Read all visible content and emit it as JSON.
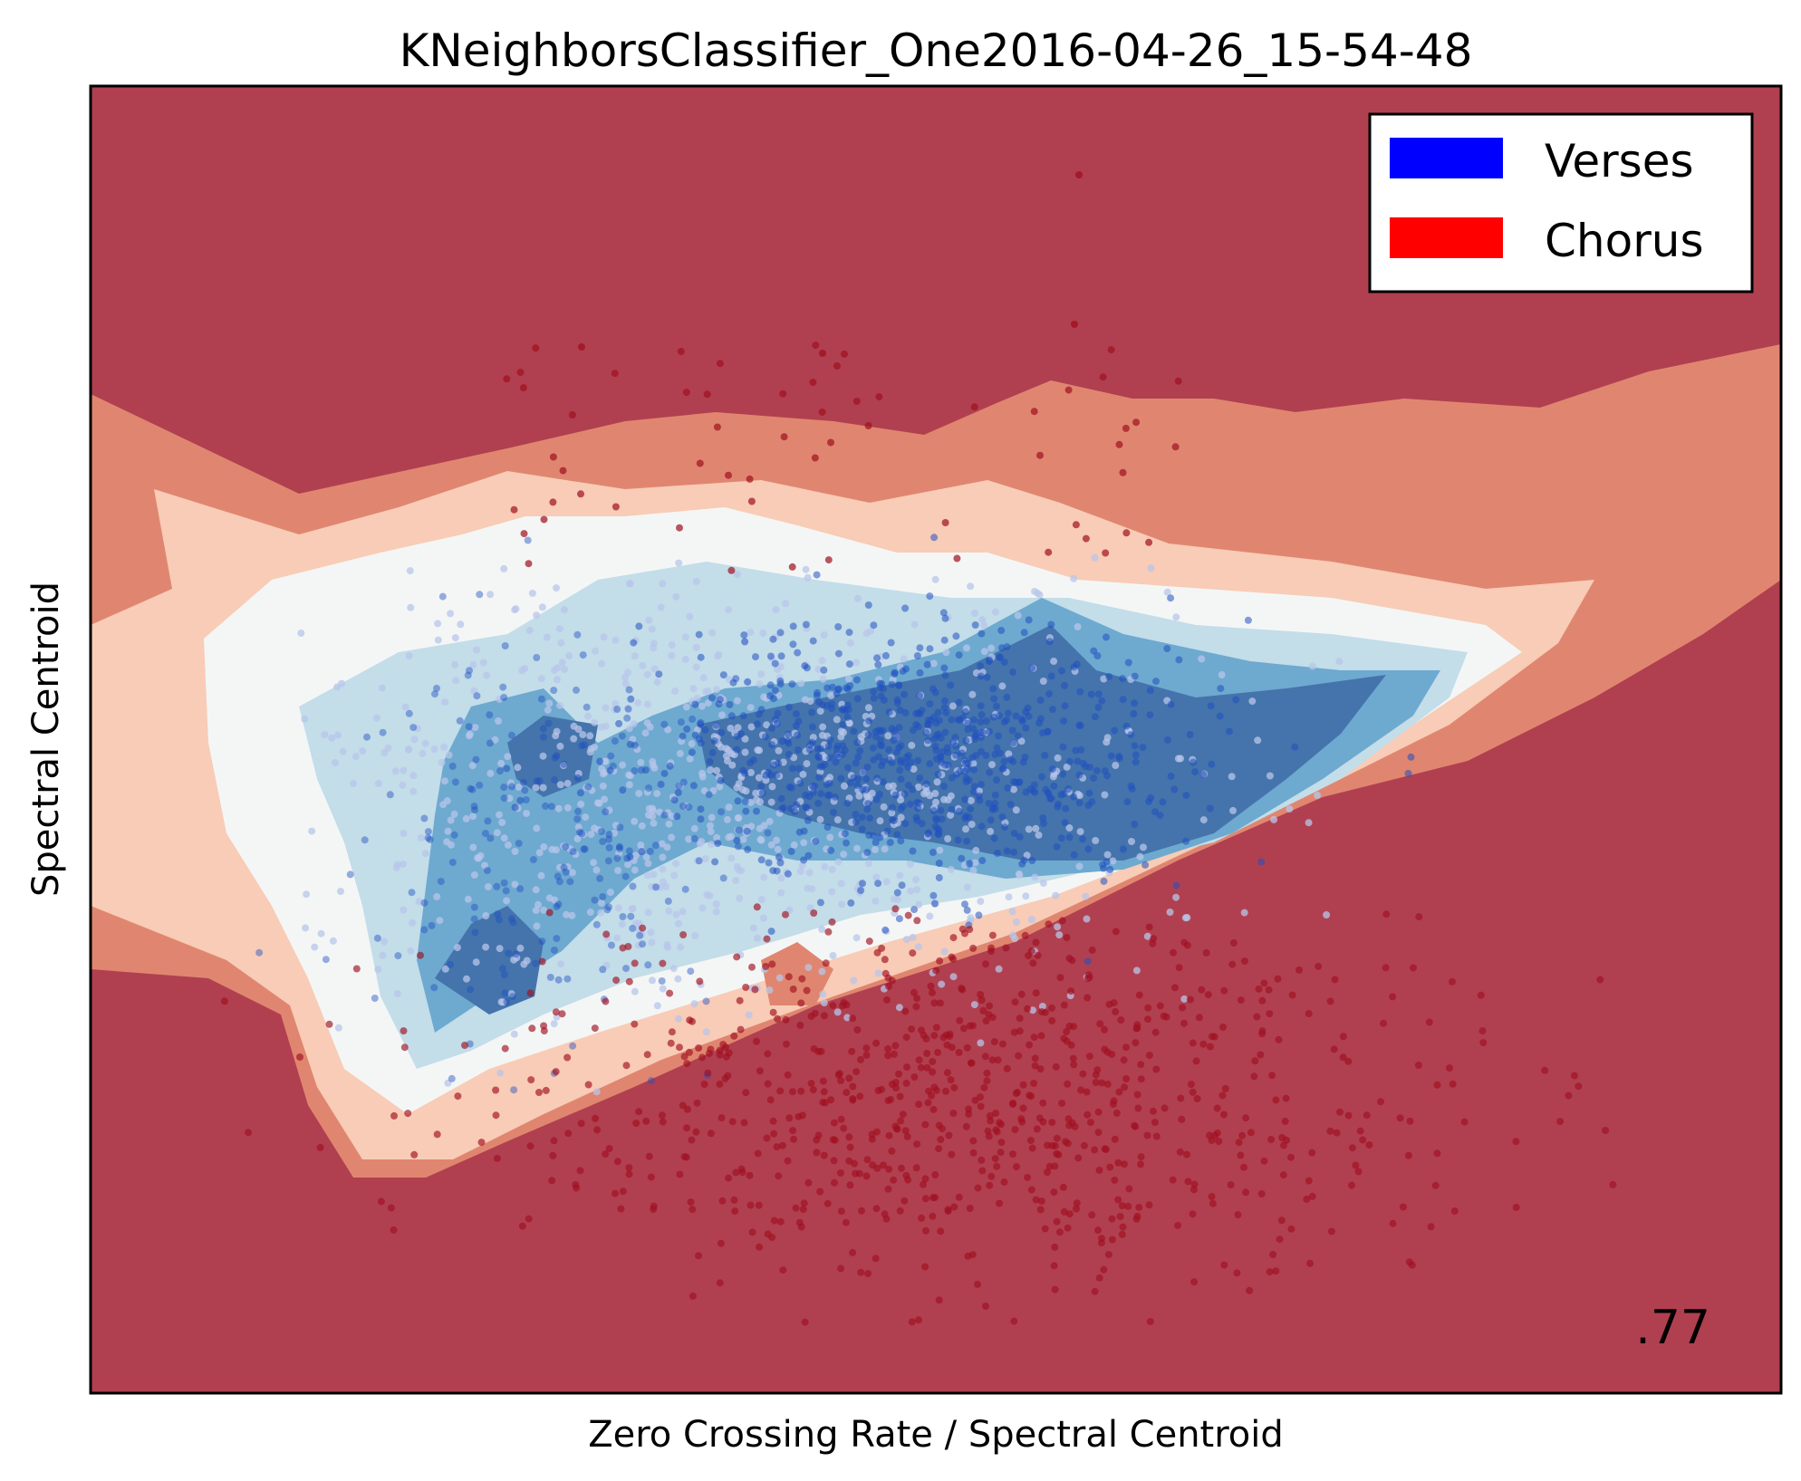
{
  "chart_data": {
    "type": "scatter",
    "title": "KNeighborsClassifier_One2016-04-26_15-54-48",
    "xlabel": "Zero Crossing Rate / Spectral Centroid",
    "ylabel": "Spectral Centroid",
    "ticks": "none",
    "score_label": ".77",
    "legend": {
      "placement": "top-right",
      "entries": [
        {
          "label": "Verses",
          "color": "#0000ff"
        },
        {
          "label": "Chorus",
          "color": "#ff0000"
        }
      ]
    },
    "colors": {
      "background_region": "#b04050",
      "contour_levels": [
        "#b04050",
        "#e08670",
        "#f8ccb6",
        "#f4f6f6",
        "#c3dde9",
        "#6ea9d0",
        "#4474ab"
      ],
      "verses_point": "#2050c0",
      "verses_point_light": "#b8c6ea",
      "chorus_point": "#a01020"
    },
    "series": [
      {
        "name": "Verses",
        "description_counts": {
          "points_approx": 1500
        }
      },
      {
        "name": "Chorus",
        "description_counts": {
          "points_approx": 900
        }
      }
    ]
  }
}
